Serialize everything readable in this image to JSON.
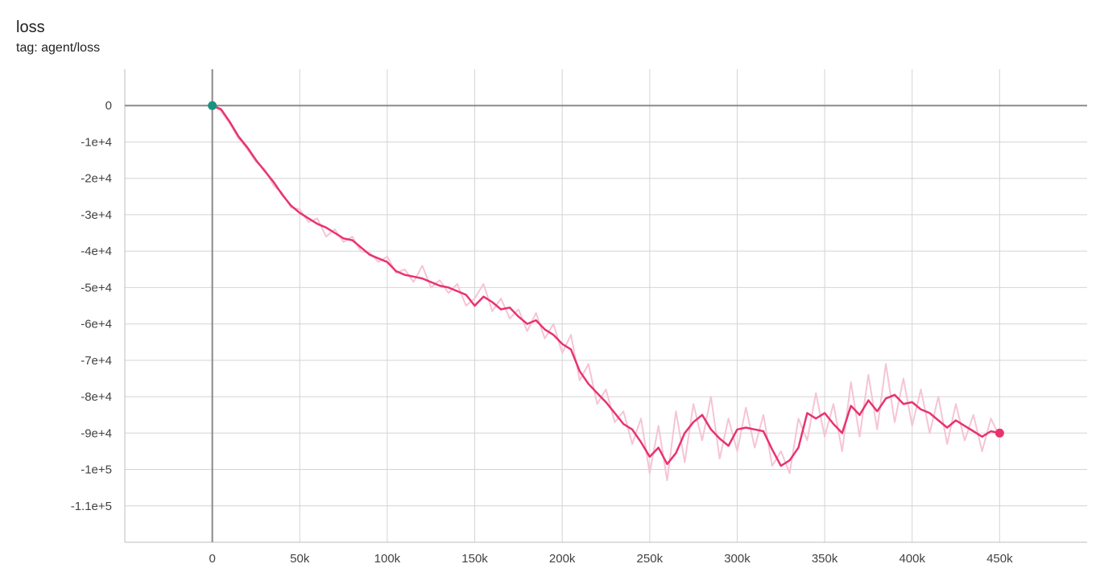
{
  "header": {
    "title": "loss",
    "subtitle": "tag: agent/loss"
  },
  "chart_data": {
    "type": "line",
    "title": "loss",
    "subtitle": "tag: agent/loss",
    "xlabel": "",
    "ylabel": "",
    "xlim": [
      -50000,
      500000
    ],
    "ylim": [
      -120000,
      10000
    ],
    "x_ticks": [
      0,
      50000,
      100000,
      150000,
      200000,
      250000,
      300000,
      350000,
      400000,
      450000
    ],
    "x_tick_labels": [
      "0",
      "50k",
      "100k",
      "150k",
      "200k",
      "250k",
      "300k",
      "350k",
      "400k",
      "450k"
    ],
    "y_ticks": [
      0,
      -10000,
      -20000,
      -30000,
      -40000,
      -50000,
      -60000,
      -70000,
      -80000,
      -90000,
      -100000,
      -110000
    ],
    "y_tick_labels": [
      "0",
      "-1e+4",
      "-2e+4",
      "-3e+4",
      "-4e+4",
      "-5e+4",
      "-6e+4",
      "-7e+4",
      "-8e+4",
      "-9e+4",
      "-1e+5",
      "-1.1e+5"
    ],
    "grid": true,
    "series": [
      {
        "color": "#e8336d",
        "raw_color": "#f5c4d6",
        "start_marker_color": "#1a9480",
        "x": [
          0,
          5000,
          10000,
          15000,
          20000,
          25000,
          30000,
          35000,
          40000,
          45000,
          50000,
          55000,
          60000,
          65000,
          70000,
          75000,
          80000,
          85000,
          90000,
          95000,
          100000,
          105000,
          110000,
          115000,
          120000,
          125000,
          130000,
          135000,
          140000,
          145000,
          150000,
          155000,
          160000,
          165000,
          170000,
          175000,
          180000,
          185000,
          190000,
          195000,
          200000,
          205000,
          210000,
          215000,
          220000,
          225000,
          230000,
          235000,
          240000,
          245000,
          250000,
          255000,
          260000,
          265000,
          270000,
          275000,
          280000,
          285000,
          290000,
          295000,
          300000,
          305000,
          310000,
          315000,
          320000,
          325000,
          330000,
          335000,
          340000,
          345000,
          350000,
          355000,
          360000,
          365000,
          370000,
          375000,
          380000,
          385000,
          390000,
          395000,
          400000,
          405000,
          410000,
          415000,
          420000,
          425000,
          430000,
          435000,
          440000,
          445000,
          450000
        ],
        "values": [
          0,
          -1000,
          -4500,
          -8500,
          -11500,
          -15000,
          -18000,
          -21000,
          -24500,
          -27500,
          -29500,
          -31000,
          -32500,
          -33500,
          -35000,
          -36500,
          -37000,
          -39000,
          -41000,
          -42000,
          -43000,
          -45500,
          -46500,
          -47000,
          -47500,
          -48500,
          -49500,
          -50000,
          -51000,
          -52000,
          -55000,
          -52500,
          -54000,
          -56000,
          -55500,
          -58000,
          -60000,
          -59000,
          -61500,
          -63000,
          -65500,
          -67000,
          -73000,
          -76500,
          -79000,
          -81500,
          -84500,
          -87500,
          -89000,
          -92500,
          -96500,
          -94000,
          -98500,
          -95500,
          -90000,
          -87000,
          -85000,
          -89000,
          -91500,
          -93500,
          -89000,
          -88500,
          -89000,
          -89500,
          -94500,
          -99000,
          -97500,
          -94000,
          -84500,
          -86000,
          -84500,
          -87500,
          -90000,
          -82500,
          -85000,
          -81000,
          -84000,
          -80500,
          -79500,
          -82000,
          -81500,
          -83500,
          -84500,
          -86500,
          -88500,
          -86500,
          -88000,
          -89500,
          -91000,
          -89500,
          -90000
        ],
        "raw_values": [
          0,
          -1500,
          -5000,
          -9000,
          -12000,
          -15500,
          -17500,
          -22000,
          -24000,
          -28000,
          -28500,
          -32000,
          -31000,
          -36000,
          -34000,
          -37500,
          -36000,
          -40000,
          -40500,
          -43000,
          -41500,
          -46000,
          -45000,
          -48500,
          -44000,
          -50000,
          -48000,
          -51500,
          -49000,
          -55000,
          -53000,
          -49000,
          -56500,
          -53000,
          -58500,
          -56000,
          -62000,
          -57000,
          -64000,
          -60000,
          -68000,
          -63000,
          -75500,
          -71000,
          -82000,
          -78000,
          -87000,
          -84000,
          -93000,
          -86000,
          -101000,
          -88000,
          -103000,
          -84000,
          -98000,
          -82000,
          -92000,
          -80000,
          -97000,
          -86000,
          -95000,
          -83000,
          -94000,
          -85000,
          -99000,
          -95000,
          -101000,
          -86000,
          -92000,
          -79000,
          -91000,
          -82000,
          -95000,
          -76000,
          -91000,
          -74000,
          -89000,
          -71000,
          -87000,
          -75000,
          -88000,
          -78000,
          -90000,
          -80000,
          -93000,
          -82000,
          -92000,
          -85000,
          -95000,
          -86000,
          -91000
        ]
      }
    ]
  }
}
